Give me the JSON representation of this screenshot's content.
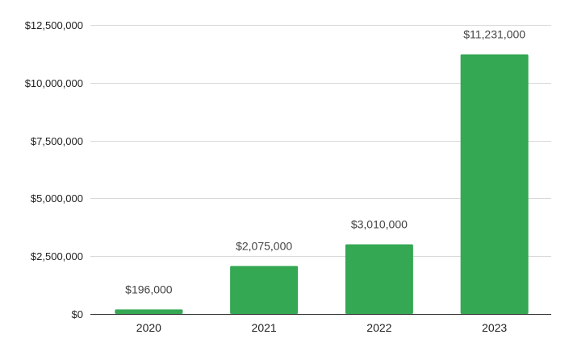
{
  "chart_data": {
    "type": "bar",
    "title": "",
    "xlabel": "",
    "ylabel": "",
    "categories": [
      "2020",
      "2021",
      "2022",
      "2023"
    ],
    "values": [
      196000,
      2075000,
      3010000,
      11231000
    ],
    "data_labels": [
      "$196,000",
      "$2,075,000",
      "$3,010,000",
      "$11,231,000"
    ],
    "ylim": [
      0,
      12500000
    ],
    "yticks": [
      0,
      2500000,
      5000000,
      7500000,
      10000000,
      12500000
    ],
    "ytick_labels": [
      "$0",
      "$2,500,000",
      "$5,000,000",
      "$7,500,000",
      "$10,000,000",
      "$12,500,000"
    ],
    "grid": true,
    "legend": "none",
    "bar_color": "#34a853"
  }
}
